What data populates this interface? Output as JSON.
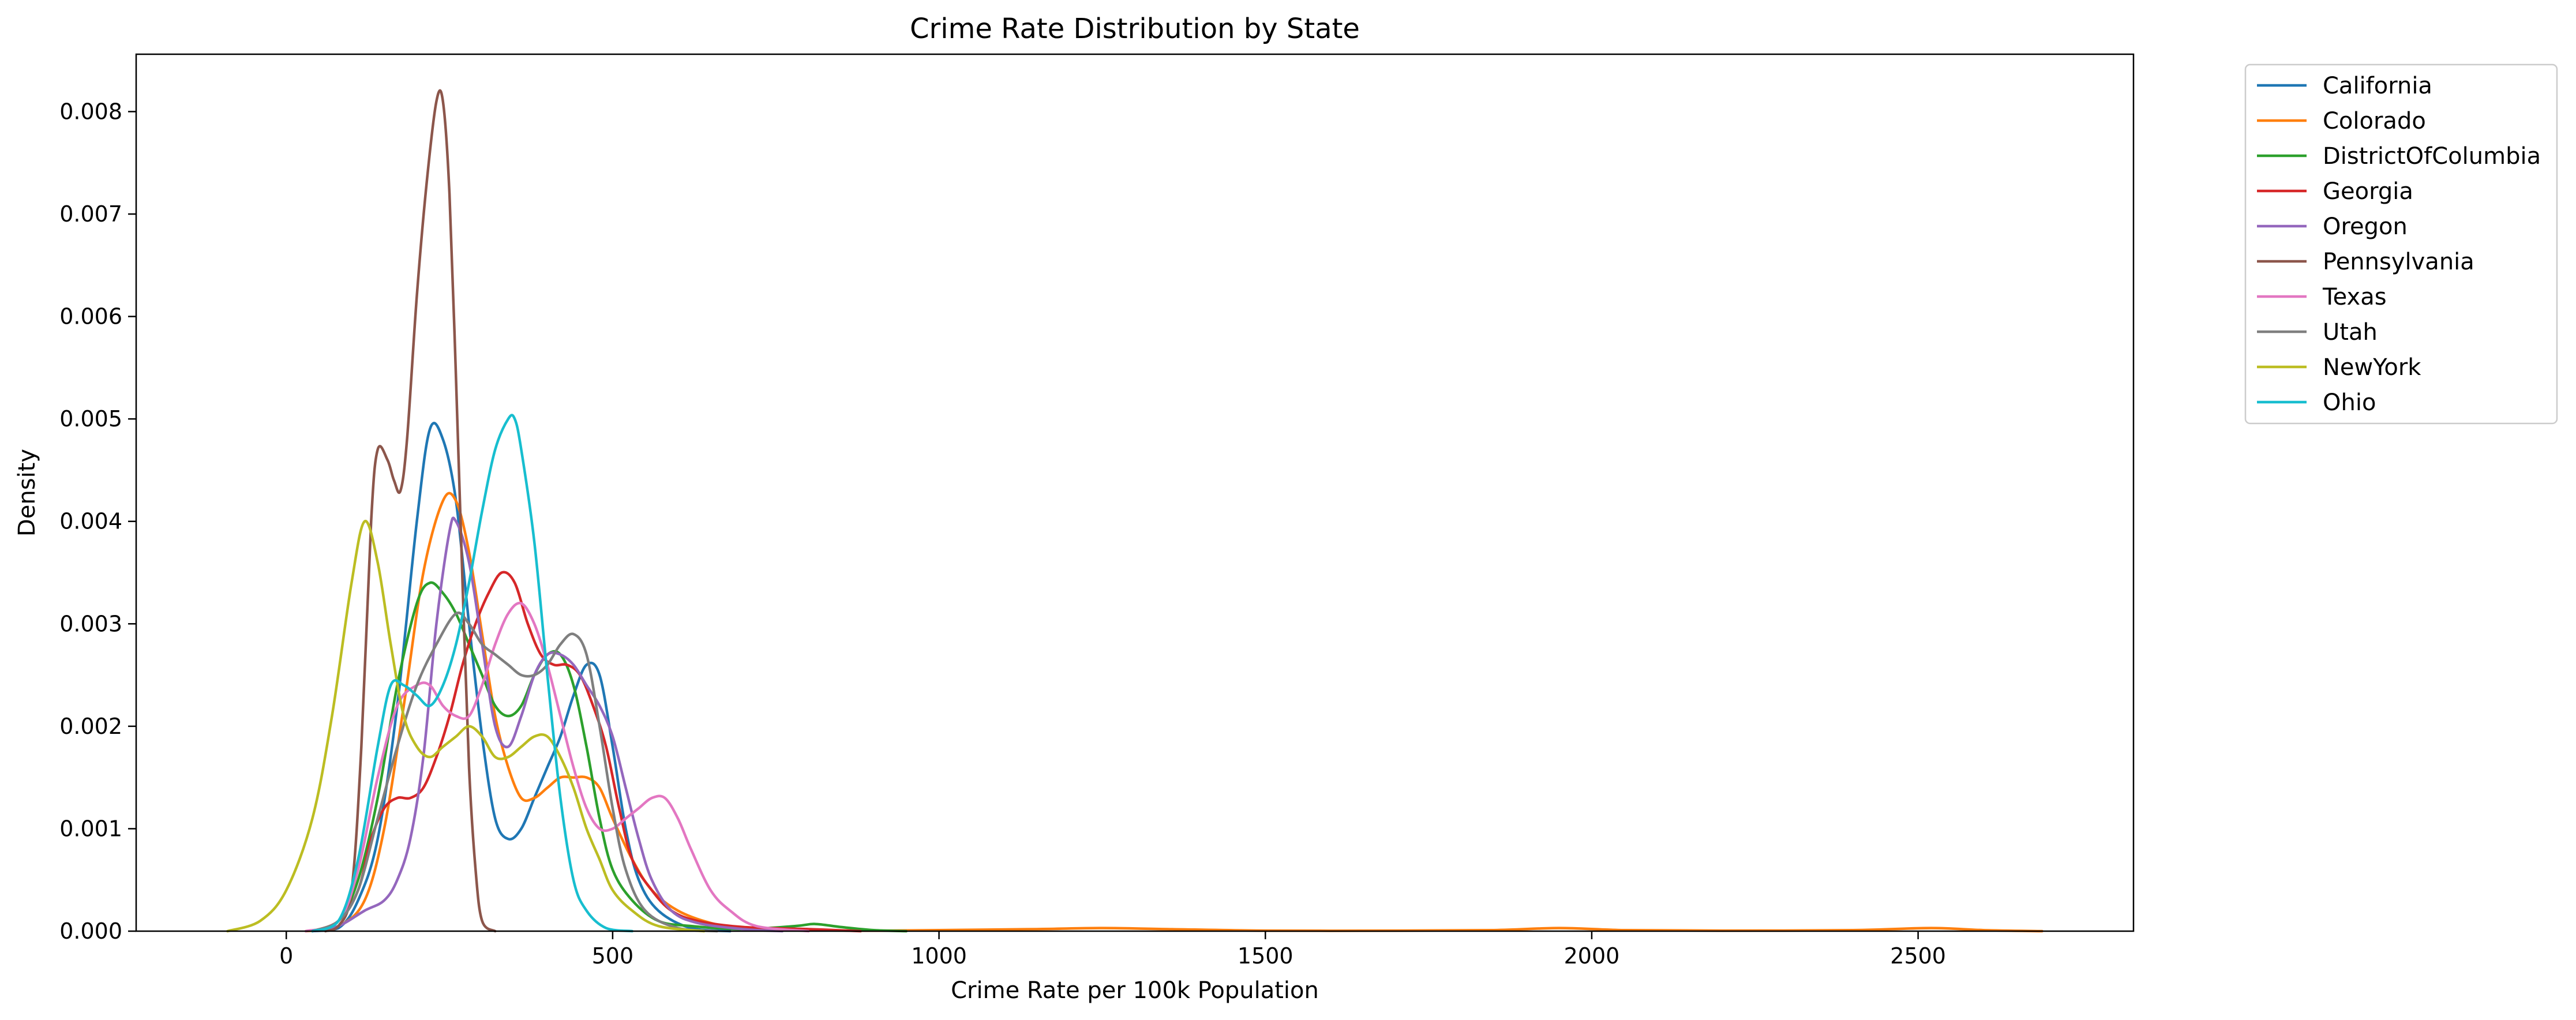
{
  "chart_data": {
    "type": "line",
    "title": "Crime Rate Distribution by State",
    "xlabel": "Crime Rate per 100k Population",
    "ylabel": "Density",
    "xlim": [
      -230,
      2830
    ],
    "ylim": [
      0,
      0.00856
    ],
    "xticks": [
      0,
      500,
      1000,
      1500,
      2000,
      2500
    ],
    "xtick_labels": [
      "0",
      "500",
      "1000",
      "1500",
      "2000",
      "2500"
    ],
    "yticks": [
      0,
      0.001,
      0.002,
      0.003,
      0.004,
      0.005,
      0.006,
      0.007,
      0.008
    ],
    "ytick_labels": [
      "0.000",
      "0.001",
      "0.002",
      "0.003",
      "0.004",
      "0.005",
      "0.006",
      "0.007",
      "0.008"
    ],
    "grid": false,
    "legend_position": "outside-top-right",
    "series": [
      {
        "name": "California",
        "color": "#1f77b4",
        "points": [
          [
            40,
            0
          ],
          [
            80,
            3e-05
          ],
          [
            110,
            0.0003
          ],
          [
            140,
            0.0009
          ],
          [
            170,
            0.0022
          ],
          [
            200,
            0.004
          ],
          [
            220,
            0.0049
          ],
          [
            240,
            0.0048
          ],
          [
            260,
            0.0042
          ],
          [
            280,
            0.003
          ],
          [
            300,
            0.0019
          ],
          [
            320,
            0.0011
          ],
          [
            340,
            0.0009
          ],
          [
            360,
            0.001
          ],
          [
            380,
            0.0013
          ],
          [
            400,
            0.0016
          ],
          [
            420,
            0.0019
          ],
          [
            440,
            0.0023
          ],
          [
            460,
            0.0026
          ],
          [
            480,
            0.0025
          ],
          [
            500,
            0.0018
          ],
          [
            520,
            0.001
          ],
          [
            540,
            0.0005
          ],
          [
            570,
            0.0002
          ],
          [
            620,
            3e-05
          ],
          [
            680,
            0
          ]
        ]
      },
      {
        "name": "Colorado",
        "color": "#ff7f0e",
        "points": [
          [
            30,
            0
          ],
          [
            80,
            5e-05
          ],
          [
            120,
            0.0003
          ],
          [
            150,
            0.001
          ],
          [
            180,
            0.0022
          ],
          [
            210,
            0.0035
          ],
          [
            240,
            0.0042
          ],
          [
            260,
            0.0042
          ],
          [
            280,
            0.0037
          ],
          [
            300,
            0.0029
          ],
          [
            320,
            0.0021
          ],
          [
            340,
            0.0016
          ],
          [
            360,
            0.0013
          ],
          [
            380,
            0.0013
          ],
          [
            400,
            0.0014
          ],
          [
            420,
            0.0015
          ],
          [
            440,
            0.0015
          ],
          [
            460,
            0.0015
          ],
          [
            480,
            0.0014
          ],
          [
            500,
            0.0011
          ],
          [
            530,
            0.0007
          ],
          [
            560,
            0.0004
          ],
          [
            600,
            0.0002
          ],
          [
            650,
            8e-05
          ],
          [
            700,
            3e-05
          ],
          [
            800,
            1e-05
          ],
          [
            900,
            5e-06
          ],
          [
            1000,
            1e-05
          ],
          [
            1150,
            2e-05
          ],
          [
            1250,
            3e-05
          ],
          [
            1350,
            2e-05
          ],
          [
            1500,
            5e-06
          ],
          [
            1700,
            5e-06
          ],
          [
            1850,
            1e-05
          ],
          [
            1950,
            3e-05
          ],
          [
            2050,
            1e-05
          ],
          [
            2200,
            5e-06
          ],
          [
            2400,
            1e-05
          ],
          [
            2520,
            3e-05
          ],
          [
            2600,
            1e-05
          ],
          [
            2690,
            0
          ]
        ]
      },
      {
        "name": "DistrictOfColumbia",
        "color": "#2ca02c",
        "points": [
          [
            40,
            0
          ],
          [
            80,
            0.0001
          ],
          [
            110,
            0.0005
          ],
          [
            140,
            0.0013
          ],
          [
            170,
            0.0024
          ],
          [
            200,
            0.0032
          ],
          [
            220,
            0.0034
          ],
          [
            240,
            0.0033
          ],
          [
            260,
            0.0031
          ],
          [
            280,
            0.0028
          ],
          [
            300,
            0.0025
          ],
          [
            320,
            0.0022
          ],
          [
            340,
            0.0021
          ],
          [
            360,
            0.0022
          ],
          [
            380,
            0.0025
          ],
          [
            400,
            0.0027
          ],
          [
            420,
            0.0027
          ],
          [
            440,
            0.0024
          ],
          [
            460,
            0.0018
          ],
          [
            480,
            0.0011
          ],
          [
            500,
            0.0006
          ],
          [
            530,
            0.0003
          ],
          [
            570,
            0.0001
          ],
          [
            620,
            5e-05
          ],
          [
            700,
            2e-05
          ],
          [
            780,
            5e-05
          ],
          [
            810,
            7e-05
          ],
          [
            850,
            4e-05
          ],
          [
            900,
            1e-05
          ],
          [
            950,
            0
          ]
        ]
      },
      {
        "name": "Georgia",
        "color": "#d62728",
        "points": [
          [
            40,
            0
          ],
          [
            80,
            0.0001
          ],
          [
            110,
            0.0004
          ],
          [
            130,
            0.0009
          ],
          [
            150,
            0.0012
          ],
          [
            170,
            0.0013
          ],
          [
            190,
            0.0013
          ],
          [
            210,
            0.0014
          ],
          [
            230,
            0.0017
          ],
          [
            250,
            0.0021
          ],
          [
            270,
            0.0026
          ],
          [
            290,
            0.003
          ],
          [
            310,
            0.0033
          ],
          [
            330,
            0.0035
          ],
          [
            350,
            0.0034
          ],
          [
            370,
            0.003
          ],
          [
            390,
            0.0027
          ],
          [
            410,
            0.0026
          ],
          [
            430,
            0.0026
          ],
          [
            450,
            0.0025
          ],
          [
            470,
            0.0022
          ],
          [
            490,
            0.0018
          ],
          [
            510,
            0.0012
          ],
          [
            530,
            0.0007
          ],
          [
            560,
            0.0004
          ],
          [
            590,
            0.0002
          ],
          [
            630,
            0.0001
          ],
          [
            700,
            4e-05
          ],
          [
            800,
            2e-05
          ],
          [
            880,
            0
          ]
        ]
      },
      {
        "name": "Oregon",
        "color": "#9467bd",
        "points": [
          [
            40,
            0
          ],
          [
            80,
            5e-05
          ],
          [
            120,
            0.0002
          ],
          [
            150,
            0.0003
          ],
          [
            170,
            0.0005
          ],
          [
            190,
            0.0009
          ],
          [
            210,
            0.0017
          ],
          [
            230,
            0.003
          ],
          [
            250,
            0.0039
          ],
          [
            260,
            0.004
          ],
          [
            280,
            0.0036
          ],
          [
            300,
            0.0028
          ],
          [
            320,
            0.002
          ],
          [
            340,
            0.0018
          ],
          [
            360,
            0.0021
          ],
          [
            380,
            0.0025
          ],
          [
            400,
            0.0027
          ],
          [
            420,
            0.0027
          ],
          [
            440,
            0.0026
          ],
          [
            460,
            0.0024
          ],
          [
            480,
            0.0022
          ],
          [
            500,
            0.0019
          ],
          [
            520,
            0.0014
          ],
          [
            540,
            0.0009
          ],
          [
            560,
            0.0005
          ],
          [
            590,
            0.0002
          ],
          [
            630,
            8e-05
          ],
          [
            700,
            2e-05
          ],
          [
            760,
            0
          ]
        ]
      },
      {
        "name": "Pennsylvania",
        "color": "#8c564b",
        "points": [
          [
            60,
            0
          ],
          [
            80,
            5e-05
          ],
          [
            100,
            0.0004
          ],
          [
            115,
            0.0018
          ],
          [
            130,
            0.004
          ],
          [
            140,
            0.0047
          ],
          [
            155,
            0.0046
          ],
          [
            165,
            0.0044
          ],
          [
            175,
            0.0043
          ],
          [
            185,
            0.0048
          ],
          [
            200,
            0.0062
          ],
          [
            215,
            0.0073
          ],
          [
            230,
            0.0081
          ],
          [
            240,
            0.0081
          ],
          [
            250,
            0.0072
          ],
          [
            260,
            0.0054
          ],
          [
            270,
            0.0034
          ],
          [
            280,
            0.0016
          ],
          [
            290,
            0.0006
          ],
          [
            300,
            0.0001
          ],
          [
            320,
            0
          ]
        ]
      },
      {
        "name": "Texas",
        "color": "#e377c2",
        "points": [
          [
            30,
            0
          ],
          [
            80,
            0.0001
          ],
          [
            110,
            0.0006
          ],
          [
            140,
            0.0015
          ],
          [
            170,
            0.0022
          ],
          [
            200,
            0.0024
          ],
          [
            220,
            0.0024
          ],
          [
            240,
            0.0022
          ],
          [
            260,
            0.0021
          ],
          [
            280,
            0.0021
          ],
          [
            300,
            0.0024
          ],
          [
            320,
            0.0028
          ],
          [
            340,
            0.0031
          ],
          [
            360,
            0.0032
          ],
          [
            380,
            0.003
          ],
          [
            400,
            0.0026
          ],
          [
            420,
            0.0021
          ],
          [
            440,
            0.0016
          ],
          [
            460,
            0.0012
          ],
          [
            480,
            0.001
          ],
          [
            500,
            0.001
          ],
          [
            520,
            0.0011
          ],
          [
            540,
            0.0012
          ],
          [
            560,
            0.0013
          ],
          [
            580,
            0.0013
          ],
          [
            600,
            0.0011
          ],
          [
            620,
            0.0008
          ],
          [
            650,
            0.0004
          ],
          [
            680,
            0.0002
          ],
          [
            720,
            5e-05
          ],
          [
            800,
            0
          ]
        ]
      },
      {
        "name": "Utah",
        "color": "#7f7f7f",
        "points": [
          [
            40,
            0
          ],
          [
            80,
            0.0001
          ],
          [
            110,
            0.0004
          ],
          [
            140,
            0.0011
          ],
          [
            170,
            0.0018
          ],
          [
            200,
            0.0024
          ],
          [
            230,
            0.0028
          ],
          [
            260,
            0.0031
          ],
          [
            280,
            0.003
          ],
          [
            300,
            0.0028
          ],
          [
            320,
            0.0027
          ],
          [
            340,
            0.0026
          ],
          [
            360,
            0.0025
          ],
          [
            380,
            0.0025
          ],
          [
            400,
            0.0026
          ],
          [
            420,
            0.0028
          ],
          [
            440,
            0.0029
          ],
          [
            460,
            0.0027
          ],
          [
            480,
            0.002
          ],
          [
            500,
            0.0012
          ],
          [
            520,
            0.0006
          ],
          [
            550,
            0.0002
          ],
          [
            600,
            3e-05
          ],
          [
            660,
            0
          ]
        ]
      },
      {
        "name": "NewYork",
        "color": "#bcbd22",
        "points": [
          [
            -90,
            0
          ],
          [
            -40,
            0.0001
          ],
          [
            0,
            0.0004
          ],
          [
            40,
            0.0011
          ],
          [
            70,
            0.0021
          ],
          [
            100,
            0.0034
          ],
          [
            120,
            0.004
          ],
          [
            140,
            0.0036
          ],
          [
            160,
            0.0028
          ],
          [
            180,
            0.0021
          ],
          [
            200,
            0.0018
          ],
          [
            220,
            0.0017
          ],
          [
            240,
            0.0018
          ],
          [
            260,
            0.0019
          ],
          [
            280,
            0.002
          ],
          [
            300,
            0.0019
          ],
          [
            320,
            0.0017
          ],
          [
            340,
            0.0017
          ],
          [
            360,
            0.0018
          ],
          [
            380,
            0.0019
          ],
          [
            400,
            0.0019
          ],
          [
            420,
            0.0017
          ],
          [
            440,
            0.0014
          ],
          [
            460,
            0.001
          ],
          [
            480,
            0.0007
          ],
          [
            500,
            0.0004
          ],
          [
            530,
            0.0002
          ],
          [
            570,
            5e-05
          ],
          [
            640,
            0
          ]
        ]
      },
      {
        "name": "Ohio",
        "color": "#17becf",
        "points": [
          [
            40,
            0
          ],
          [
            80,
            0.0001
          ],
          [
            110,
            0.0007
          ],
          [
            140,
            0.0018
          ],
          [
            160,
            0.0024
          ],
          [
            180,
            0.0024
          ],
          [
            200,
            0.0023
          ],
          [
            220,
            0.0022
          ],
          [
            240,
            0.0024
          ],
          [
            260,
            0.0028
          ],
          [
            280,
            0.0034
          ],
          [
            300,
            0.0041
          ],
          [
            320,
            0.0047
          ],
          [
            340,
            0.005
          ],
          [
            350,
            0.005
          ],
          [
            360,
            0.0047
          ],
          [
            380,
            0.0038
          ],
          [
            400,
            0.0025
          ],
          [
            420,
            0.0013
          ],
          [
            440,
            0.0005
          ],
          [
            460,
            0.0002
          ],
          [
            490,
            3e-05
          ],
          [
            530,
            0
          ]
        ]
      }
    ]
  }
}
